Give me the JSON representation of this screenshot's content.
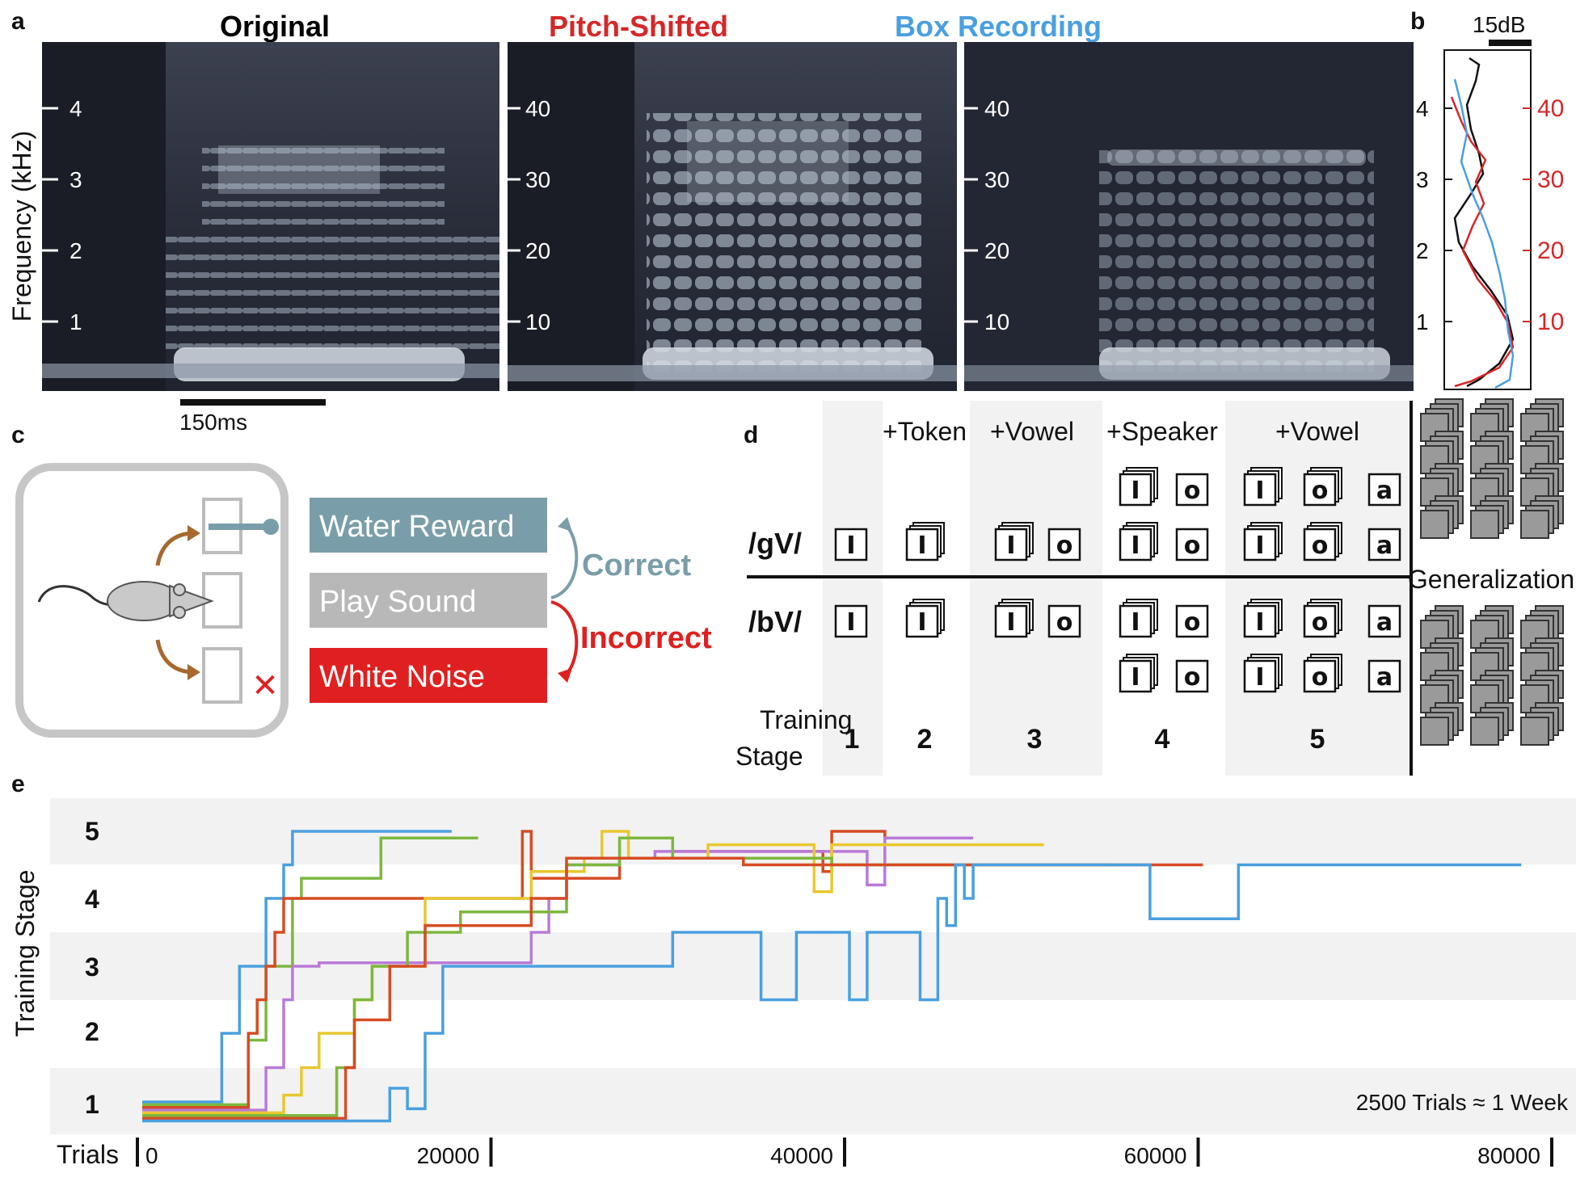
{
  "panels": {
    "a": "a",
    "b": "b",
    "c": "c",
    "d": "d",
    "e": "e"
  },
  "panel_a": {
    "spectrograms": [
      {
        "title": "Original",
        "title_color": "#111111",
        "ticks": [
          "4",
          "3",
          "2",
          "1"
        ]
      },
      {
        "title": "Pitch-Shifted",
        "title_color": "#d62728",
        "ticks": [
          "40",
          "30",
          "20",
          "10"
        ]
      },
      {
        "title": "Box Recording",
        "title_color": "#4a9fe0",
        "ticks": [
          "40",
          "30",
          "20",
          "10"
        ]
      }
    ],
    "ylabel": "Frequency (kHz)",
    "scalebar_label": "150ms"
  },
  "panel_b": {
    "scalebar_label": "15dB",
    "left_ticks": [
      "4",
      "3",
      "2",
      "1"
    ],
    "right_ticks": [
      "40",
      "30",
      "20",
      "10"
    ],
    "series": [
      {
        "color": "#111111"
      },
      {
        "color": "#d62728"
      },
      {
        "color": "#4a9fe0"
      }
    ]
  },
  "panel_c": {
    "boxes": [
      {
        "label": "Water Reward",
        "color": "#7a9ea9"
      },
      {
        "label": "Play Sound",
        "color": "#b8b8b8"
      },
      {
        "label": "White Noise",
        "color": "#e02020"
      }
    ],
    "correct_label": "Correct",
    "correct_color": "#7a9ea9",
    "incorrect_label": "Incorrect",
    "incorrect_color": "#e02020"
  },
  "panel_d": {
    "column_heads": [
      "+Token",
      "+Vowel",
      "+Speaker",
      "+Vowel"
    ],
    "row_heads": [
      "/gV/",
      "/bV/"
    ],
    "training_label_line1": "Training",
    "training_label_line2": "Stage",
    "stages": [
      "1",
      "2",
      "3",
      "4",
      "5"
    ],
    "generalization_label": "Generalization",
    "tokens": [
      "I",
      "o",
      "a"
    ]
  },
  "panel_e": {
    "ylabel": "Training Stage",
    "stage_labels": [
      "1",
      "2",
      "3",
      "4",
      "5"
    ],
    "xlabel": "Trials",
    "xticks": [
      "0",
      "20000",
      "40000",
      "60000",
      "80000"
    ],
    "note": "2500 Trials ≈ 1 Week",
    "xlim": [
      0,
      80000
    ],
    "series": [
      {
        "color": "#4a9fe0",
        "steps": [
          [
            0,
            1
          ],
          [
            4500,
            1
          ],
          [
            4500,
            2
          ],
          [
            5500,
            2
          ],
          [
            5500,
            3
          ],
          [
            7000,
            3
          ],
          [
            7000,
            4
          ],
          [
            8000,
            4
          ],
          [
            8000,
            4.5
          ],
          [
            8500,
            4.5
          ],
          [
            8500,
            5
          ],
          [
            17500,
            5
          ]
        ]
      },
      {
        "color": "#7cb83e",
        "steps": [
          [
            0,
            0.96
          ],
          [
            6000,
            0.96
          ],
          [
            6000,
            1.9
          ],
          [
            7000,
            1.9
          ],
          [
            7000,
            3
          ],
          [
            8500,
            3
          ],
          [
            8500,
            4
          ],
          [
            9000,
            4
          ],
          [
            9000,
            4.3
          ],
          [
            13500,
            4.3
          ],
          [
            13500,
            4.7
          ],
          [
            13500,
            4.7
          ],
          [
            13500,
            4.9
          ],
          [
            19000,
            4.9
          ]
        ]
      },
      {
        "color": "#d64c24",
        "steps": [
          [
            0,
            0.92
          ],
          [
            6000,
            0.92
          ],
          [
            6000,
            2
          ],
          [
            6500,
            2
          ],
          [
            6500,
            2.5
          ],
          [
            7000,
            2.5
          ],
          [
            7000,
            3
          ],
          [
            7500,
            3
          ],
          [
            7500,
            3.5
          ],
          [
            8000,
            3.5
          ],
          [
            8000,
            4
          ],
          [
            21500,
            4
          ],
          [
            21500,
            5
          ],
          [
            22000,
            5
          ],
          [
            22000,
            4.3
          ],
          [
            27000,
            4.3
          ],
          [
            27000,
            4.6
          ],
          [
            30000,
            4.6
          ],
          [
            30000,
            4.7
          ],
          [
            38500,
            4.7
          ],
          [
            38500,
            4.4
          ],
          [
            39000,
            4.4
          ],
          [
            39000,
            5
          ],
          [
            42000,
            5
          ],
          [
            42000,
            4.9
          ],
          [
            43000,
            4.9
          ]
        ]
      },
      {
        "color": "#b97ad8",
        "steps": [
          [
            0,
            0.88
          ],
          [
            7000,
            0.88
          ],
          [
            7000,
            1.5
          ],
          [
            8000,
            1.5
          ],
          [
            8000,
            2.5
          ],
          [
            8500,
            2.5
          ],
          [
            8500,
            3
          ],
          [
            10000,
            3
          ],
          [
            10000,
            3.05
          ],
          [
            22000,
            3.05
          ],
          [
            22000,
            3.5
          ],
          [
            23000,
            3.5
          ],
          [
            23000,
            4
          ],
          [
            24000,
            4
          ],
          [
            24000,
            4.5
          ],
          [
            27000,
            4.5
          ],
          [
            27000,
            4.6
          ],
          [
            29000,
            4.6
          ],
          [
            29000,
            4.7
          ],
          [
            41000,
            4.7
          ],
          [
            41000,
            4.2
          ],
          [
            42000,
            4.2
          ],
          [
            42000,
            4.9
          ],
          [
            47000,
            4.9
          ]
        ]
      },
      {
        "color": "#e8c830",
        "steps": [
          [
            0,
            0.84
          ],
          [
            8000,
            0.84
          ],
          [
            8000,
            1.1
          ],
          [
            9000,
            1.1
          ],
          [
            9000,
            1.5
          ],
          [
            10000,
            1.5
          ],
          [
            10000,
            2
          ],
          [
            12000,
            2
          ],
          [
            12000,
            2.5
          ],
          [
            13000,
            2.5
          ],
          [
            13000,
            3
          ],
          [
            16000,
            3
          ],
          [
            16000,
            4
          ],
          [
            22000,
            4
          ],
          [
            22000,
            4.4
          ],
          [
            25000,
            4.4
          ],
          [
            25000,
            4.6
          ],
          [
            26000,
            4.6
          ],
          [
            26000,
            5
          ],
          [
            27500,
            5
          ],
          [
            27500,
            4.6
          ],
          [
            32000,
            4.6
          ],
          [
            32000,
            4.8
          ],
          [
            38000,
            4.8
          ],
          [
            38000,
            4.1
          ],
          [
            39000,
            4.1
          ],
          [
            39000,
            4.8
          ],
          [
            51000,
            4.8
          ]
        ]
      },
      {
        "color": "#7cb83e",
        "steps": [
          [
            0,
            0.8
          ],
          [
            11000,
            0.8
          ],
          [
            11000,
            1.5
          ],
          [
            12000,
            1.5
          ],
          [
            12000,
            2.5
          ],
          [
            13000,
            2.5
          ],
          [
            13000,
            3
          ],
          [
            15000,
            3
          ],
          [
            15000,
            3.5
          ],
          [
            18000,
            3.5
          ],
          [
            18000,
            3.8
          ],
          [
            24000,
            3.8
          ],
          [
            24000,
            4.5
          ],
          [
            27000,
            4.5
          ],
          [
            27000,
            4.9
          ],
          [
            30000,
            4.9
          ],
          [
            30000,
            4.6
          ],
          [
            39000,
            4.6
          ],
          [
            39000,
            4.5
          ],
          [
            55000,
            4.5
          ]
        ]
      },
      {
        "color": "#d64c24",
        "steps": [
          [
            0,
            0.76
          ],
          [
            11500,
            0.76
          ],
          [
            11500,
            1.5
          ],
          [
            12000,
            1.5
          ],
          [
            12000,
            2.2
          ],
          [
            14000,
            2.2
          ],
          [
            14000,
            3
          ],
          [
            16000,
            3
          ],
          [
            16000,
            3.6
          ],
          [
            22000,
            3.6
          ],
          [
            22000,
            4
          ],
          [
            24000,
            4
          ],
          [
            24000,
            4.6
          ],
          [
            34000,
            4.6
          ],
          [
            34000,
            4.5
          ],
          [
            60000,
            4.5
          ]
        ]
      },
      {
        "color": "#4a9fe0",
        "steps": [
          [
            0,
            0.72
          ],
          [
            14000,
            0.72
          ],
          [
            14000,
            1.2
          ],
          [
            15000,
            1.2
          ],
          [
            15000,
            0.9
          ],
          [
            16000,
            0.9
          ],
          [
            16000,
            2
          ],
          [
            17000,
            2
          ],
          [
            17000,
            3
          ],
          [
            30000,
            3
          ],
          [
            30000,
            3.5
          ],
          [
            35000,
            3.5
          ],
          [
            35000,
            2.5
          ],
          [
            37000,
            2.5
          ],
          [
            37000,
            3.5
          ],
          [
            40000,
            3.5
          ],
          [
            40000,
            2.5
          ],
          [
            41000,
            2.5
          ],
          [
            41000,
            3.5
          ],
          [
            44000,
            3.5
          ],
          [
            44000,
            2.5
          ],
          [
            45000,
            2.5
          ],
          [
            45000,
            4
          ],
          [
            45500,
            4
          ],
          [
            45500,
            3.6
          ],
          [
            46000,
            3.6
          ],
          [
            46000,
            4.5
          ],
          [
            46500,
            4.5
          ],
          [
            46500,
            4
          ],
          [
            47000,
            4
          ],
          [
            47000,
            4.5
          ],
          [
            57000,
            4.5
          ],
          [
            57000,
            3.7
          ],
          [
            62000,
            3.7
          ],
          [
            62000,
            4.5
          ],
          [
            78000,
            4.5
          ]
        ]
      }
    ]
  }
}
